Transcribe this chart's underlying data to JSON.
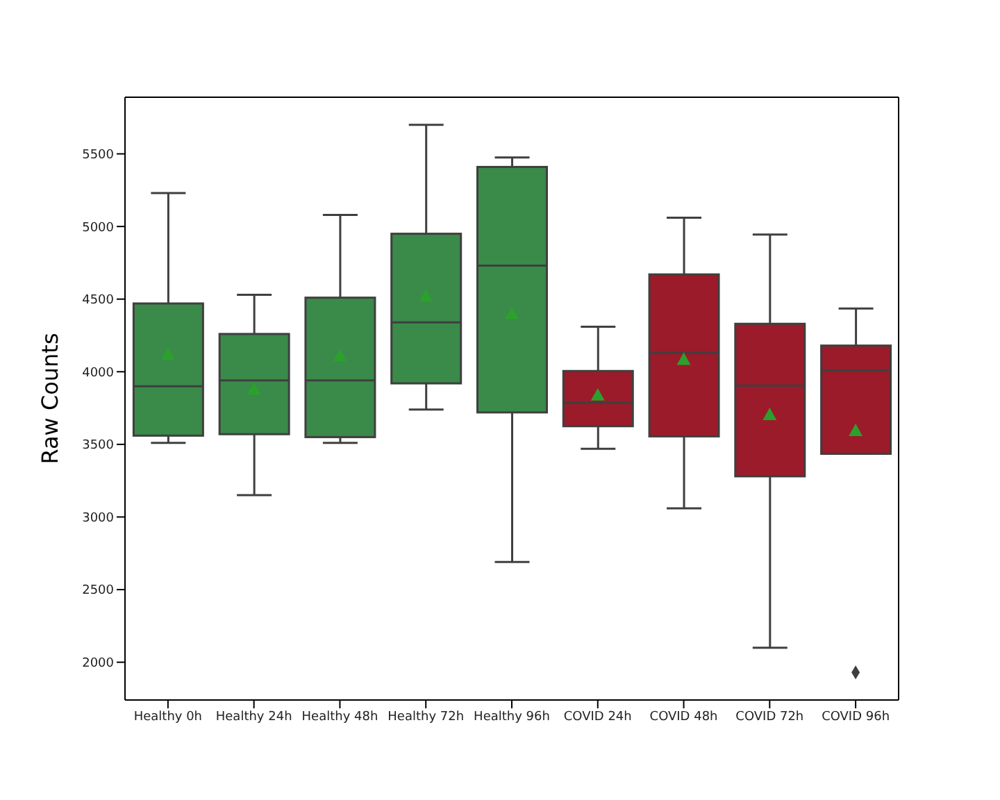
{
  "chart_data": {
    "type": "box",
    "ylabel": "Raw Counts",
    "categories": [
      "Healthy 0h",
      "Healthy 24h",
      "Healthy 48h",
      "Healthy 72h",
      "Healthy 96h",
      "COVID 24h",
      "COVID 48h",
      "COVID 72h",
      "COVID 96h"
    ],
    "colors": [
      "#3a8a4a",
      "#3a8a4a",
      "#3a8a4a",
      "#3a8a4a",
      "#3a8a4a",
      "#9b1b2a",
      "#9b1b2a",
      "#9b1b2a",
      "#9b1b2a"
    ],
    "boxes": [
      {
        "low": 3510,
        "q1": 3560,
        "median": 3900,
        "q3": 4470,
        "high": 5230,
        "mean": 4120
      },
      {
        "low": 3150,
        "q1": 3570,
        "median": 3940,
        "q3": 4260,
        "high": 4530,
        "mean": 3880
      },
      {
        "low": 3510,
        "q1": 3550,
        "median": 3940,
        "q3": 4510,
        "high": 5080,
        "mean": 4110
      },
      {
        "low": 3740,
        "q1": 3920,
        "median": 4340,
        "q3": 4950,
        "high": 5700,
        "mean": 4520
      },
      {
        "low": 2690,
        "q1": 3720,
        "median": 4730,
        "q3": 5410,
        "high": 5475,
        "mean": 4400
      },
      {
        "low": 3470,
        "q1": 3625,
        "median": 3785,
        "q3": 4005,
        "high": 4310,
        "mean": 3840
      },
      {
        "low": 3060,
        "q1": 3555,
        "median": 4130,
        "q3": 4670,
        "high": 5060,
        "mean": 4085
      },
      {
        "low": 2100,
        "q1": 3280,
        "median": 3905,
        "q3": 4330,
        "high": 4945,
        "mean": 3705
      },
      {
        "low": 3435,
        "q1": 3435,
        "median": 4010,
        "q3": 4180,
        "high": 4435,
        "mean": 3595,
        "outliers": [
          1930
        ]
      }
    ],
    "marker": "triangle",
    "ylim": [
      1740,
      5890
    ],
    "yticks": [
      2000,
      2500,
      3000,
      3500,
      4000,
      4500,
      5000,
      5500
    ]
  }
}
